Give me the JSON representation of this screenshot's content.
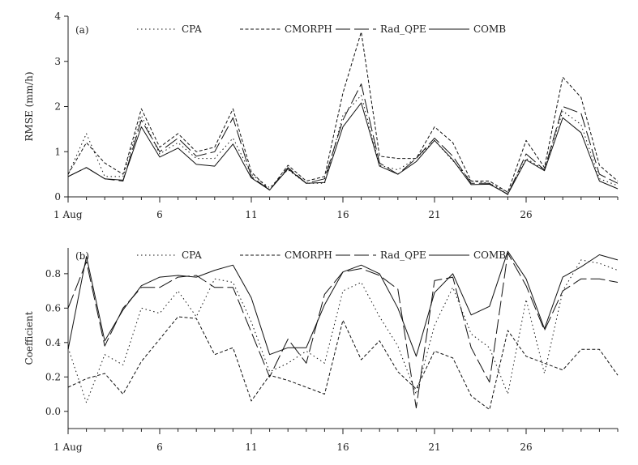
{
  "chart_data": [
    {
      "panel_label": "(a)",
      "type": "line",
      "ylabel": "RMSE (mm/h)",
      "ylim": [
        0,
        4
      ],
      "yticks": [
        "0",
        "1",
        "2",
        "3",
        "4"
      ],
      "xlim": [
        1,
        31
      ],
      "xticks": [
        {
          "day": 1,
          "label": "1 Aug"
        },
        {
          "day": 6,
          "label": "6"
        },
        {
          "day": 11,
          "label": "11"
        },
        {
          "day": 16,
          "label": "16"
        },
        {
          "day": 21,
          "label": "21"
        },
        {
          "day": 26,
          "label": "26"
        }
      ],
      "legend_position": "top",
      "x": [
        1,
        2,
        3,
        4,
        5,
        6,
        7,
        8,
        9,
        10,
        11,
        12,
        13,
        14,
        15,
        16,
        17,
        18,
        19,
        20,
        21,
        22,
        23,
        24,
        25,
        26,
        27,
        28,
        29,
        30,
        31
      ],
      "series": [
        {
          "name": "CPA",
          "style": "dotted",
          "values": [
            0.5,
            1.4,
            0.45,
            0.45,
            1.8,
            0.95,
            1.2,
            0.85,
            0.85,
            1.3,
            0.5,
            0.2,
            0.6,
            0.3,
            0.3,
            1.8,
            2.25,
            0.7,
            0.6,
            0.85,
            1.25,
            0.8,
            0.35,
            0.3,
            0.1,
            0.85,
            0.6,
            1.9,
            1.6,
            0.4,
            0.25
          ]
        },
        {
          "name": "CMORPH",
          "style": "dashed",
          "values": [
            0.5,
            1.2,
            0.75,
            0.5,
            1.95,
            1.1,
            1.4,
            1.0,
            1.1,
            1.95,
            0.55,
            0.15,
            0.7,
            0.35,
            0.45,
            2.3,
            3.65,
            0.9,
            0.85,
            0.85,
            1.55,
            1.2,
            0.35,
            0.35,
            0.1,
            1.25,
            0.65,
            2.65,
            2.2,
            0.7,
            0.35
          ]
        },
        {
          "name": "Rad_QPE",
          "style": "longdash",
          "values": [
            0.45,
            0.65,
            0.4,
            0.35,
            1.7,
            1.0,
            1.3,
            0.9,
            1.0,
            1.75,
            0.45,
            0.15,
            0.65,
            0.3,
            0.4,
            1.7,
            2.5,
            0.75,
            0.5,
            0.85,
            1.3,
            0.9,
            0.3,
            0.3,
            0.05,
            0.95,
            0.6,
            2.0,
            1.85,
            0.5,
            0.3
          ]
        },
        {
          "name": "COMB",
          "style": "solid",
          "values": [
            0.45,
            0.65,
            0.4,
            0.37,
            1.55,
            0.88,
            1.08,
            0.72,
            0.68,
            1.17,
            0.42,
            0.15,
            0.62,
            0.3,
            0.32,
            1.55,
            2.08,
            0.68,
            0.5,
            0.78,
            1.25,
            0.82,
            0.27,
            0.28,
            0.06,
            0.82,
            0.58,
            1.75,
            1.42,
            0.35,
            0.18
          ]
        }
      ]
    },
    {
      "panel_label": "(b)",
      "type": "line",
      "ylabel": "Coefficient",
      "ylim": [
        -0.1,
        0.95
      ],
      "yticks": [
        "0.0",
        "0.2",
        "0.4",
        "0.6",
        "0.8"
      ],
      "ytick_values": [
        0.0,
        0.2,
        0.4,
        0.6,
        0.8
      ],
      "xlim": [
        1,
        31
      ],
      "xticks": [
        {
          "day": 1,
          "label": "1 Aug"
        },
        {
          "day": 6,
          "label": "6"
        },
        {
          "day": 11,
          "label": "11"
        },
        {
          "day": 16,
          "label": "16"
        },
        {
          "day": 21,
          "label": "21"
        },
        {
          "day": 26,
          "label": "26"
        }
      ],
      "legend_position": "top",
      "x": [
        1,
        2,
        3,
        4,
        5,
        6,
        7,
        8,
        9,
        10,
        11,
        12,
        13,
        14,
        15,
        16,
        17,
        18,
        19,
        20,
        21,
        22,
        23,
        24,
        25,
        26,
        27,
        28,
        29,
        30,
        31
      ],
      "series": [
        {
          "name": "CPA",
          "style": "dotted",
          "values": [
            0.37,
            0.05,
            0.33,
            0.27,
            0.6,
            0.57,
            0.7,
            0.55,
            0.77,
            0.75,
            0.52,
            0.23,
            0.28,
            0.35,
            0.28,
            0.7,
            0.75,
            0.55,
            0.38,
            0.1,
            0.5,
            0.72,
            0.45,
            0.37,
            0.1,
            0.65,
            0.22,
            0.7,
            0.88,
            0.86,
            0.82
          ]
        },
        {
          "name": "CMORPH",
          "style": "dashed",
          "values": [
            0.14,
            0.19,
            0.22,
            0.1,
            0.29,
            0.42,
            0.55,
            0.54,
            0.33,
            0.37,
            0.06,
            0.21,
            0.18,
            0.14,
            0.1,
            0.53,
            0.3,
            0.41,
            0.23,
            0.13,
            0.35,
            0.31,
            0.09,
            0.01,
            0.47,
            0.32,
            0.28,
            0.24,
            0.36,
            0.36,
            0.21
          ]
        },
        {
          "name": "Rad_QPE",
          "style": "longdash",
          "values": [
            0.6,
            0.87,
            0.38,
            0.6,
            0.72,
            0.72,
            0.78,
            0.79,
            0.72,
            0.72,
            0.46,
            0.2,
            0.42,
            0.28,
            0.68,
            0.81,
            0.83,
            0.79,
            0.71,
            0.02,
            0.76,
            0.78,
            0.37,
            0.17,
            0.92,
            0.73,
            0.47,
            0.7,
            0.77,
            0.77,
            0.75
          ]
        },
        {
          "name": "COMB",
          "style": "solid",
          "values": [
            0.36,
            0.9,
            0.41,
            0.59,
            0.73,
            0.78,
            0.79,
            0.78,
            0.82,
            0.85,
            0.66,
            0.33,
            0.37,
            0.37,
            0.62,
            0.81,
            0.85,
            0.8,
            0.6,
            0.32,
            0.69,
            0.8,
            0.56,
            0.61,
            0.93,
            0.77,
            0.48,
            0.78,
            0.84,
            0.91,
            0.88
          ]
        }
      ]
    }
  ]
}
